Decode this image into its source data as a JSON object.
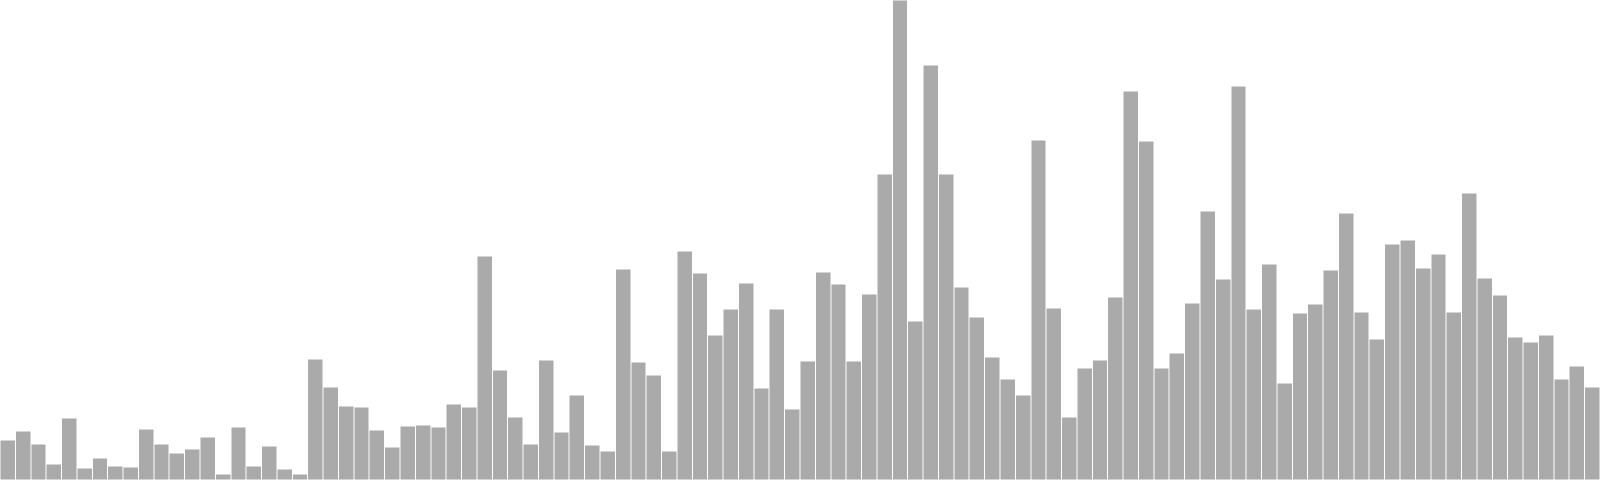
{
  "chart_data": {
    "type": "bar",
    "title": "",
    "xlabel": "",
    "ylabel": "",
    "grid": false,
    "legend": "none",
    "bar_color": "#aaaaaa",
    "ylim": [
      0,
      480
    ],
    "values": [
      40,
      49,
      36,
      16,
      62,
      12,
      22,
      14,
      13,
      51,
      36,
      27,
      31,
      43,
      6,
      53,
      14,
      34,
      11,
      6,
      121,
      93,
      74,
      73,
      50,
      33,
      54,
      55,
      53,
      76,
      73,
      224,
      110,
      63,
      36,
      120,
      48,
      85,
      35,
      29,
      211,
      118,
      105,
      29,
      229,
      207,
      145,
      171,
      197,
      92,
      171,
      71,
      119,
      208,
      196,
      119,
      186,
      306,
      480,
      159,
      415,
      306,
      193,
      163,
      123,
      101,
      85,
      340,
      172,
      63,
      112,
      120,
      183,
      389,
      339,
      112,
      127,
      177,
      269,
      201,
      394,
      171,
      216,
      97,
      167,
      176,
      210,
      267,
      168,
      141,
      236,
      240,
      212,
      226,
      168,
      287,
      202,
      185,
      143,
      138,
      145,
      101,
      114,
      93
    ]
  }
}
